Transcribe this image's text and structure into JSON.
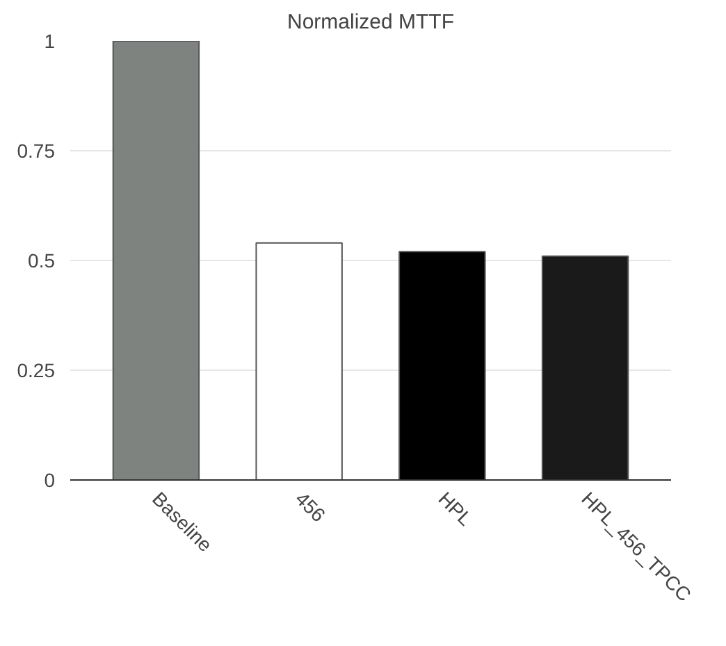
{
  "chart_data": {
    "type": "bar",
    "title": "Normalized MTTF",
    "categories": [
      "Baseline",
      "456",
      "HPL",
      "HPL_456_TPCC"
    ],
    "values": [
      1,
      0.54,
      0.52,
      0.51
    ],
    "colors": [
      "#7f837f",
      "#ffffff",
      "#000000",
      "#1a1a1a"
    ],
    "ylim": [
      0,
      1
    ],
    "yticks": [
      0,
      {
        "value": 0.25,
        "label": "0.25"
      },
      {
        "value": 0.5,
        "label": "0.5"
      },
      {
        "value": 0.75,
        "label": "0.75"
      },
      1
    ],
    "grid": "y"
  }
}
